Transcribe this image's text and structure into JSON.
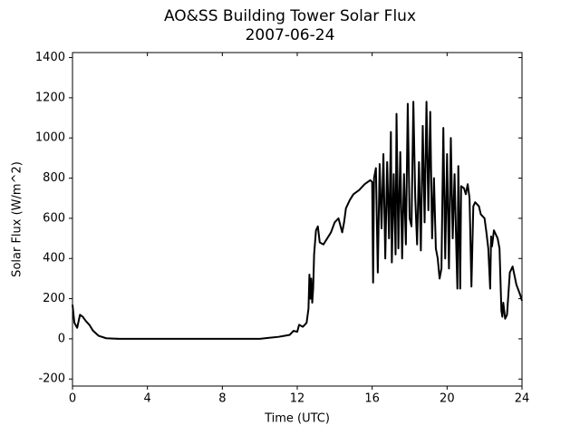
{
  "chart_data": {
    "type": "line",
    "title": "AO&SS Building Tower Solar Flux",
    "subtitle": "2007-06-24",
    "xlabel": "Time (UTC)",
    "ylabel": "Solar Flux (W/m^2)",
    "xlim": [
      0,
      24
    ],
    "xticks": [
      0,
      4,
      8,
      12,
      16,
      20,
      24
    ],
    "ylim": [
      -235,
      1425
    ],
    "yticks": [
      -200,
      0,
      200,
      400,
      600,
      800,
      1000,
      1200,
      1400
    ],
    "series": [
      {
        "name": "Solar Flux",
        "color": "#000000",
        "x": [
          0,
          0.1,
          0.25,
          0.4,
          0.55,
          0.7,
          0.9,
          1.1,
          1.4,
          1.8,
          2.5,
          4,
          8,
          10,
          10.5,
          11,
          11.3,
          11.6,
          11.8,
          12,
          12.1,
          12.3,
          12.5,
          12.6,
          12.65,
          12.7,
          12.75,
          12.8,
          12.85,
          12.9,
          13.0,
          13.1,
          13.2,
          13.4,
          13.6,
          13.8,
          14.0,
          14.2,
          14.4,
          14.5,
          14.6,
          14.8,
          15,
          15.3,
          15.6,
          15.9,
          16.0,
          16.05,
          16.1,
          16.2,
          16.3,
          16.4,
          16.5,
          16.6,
          16.7,
          16.8,
          16.9,
          17.0,
          17.05,
          17.15,
          17.25,
          17.3,
          17.4,
          17.5,
          17.6,
          17.7,
          17.8,
          17.9,
          18.0,
          18.1,
          18.2,
          18.3,
          18.4,
          18.5,
          18.6,
          18.7,
          18.8,
          18.9,
          19.0,
          19.1,
          19.2,
          19.3,
          19.4,
          19.5,
          19.6,
          19.7,
          19.8,
          19.9,
          20.0,
          20.1,
          20.2,
          20.3,
          20.4,
          20.5,
          20.55,
          20.6,
          20.7,
          20.75,
          20.9,
          21.0,
          21.1,
          21.2,
          21.3,
          21.4,
          21.5,
          21.7,
          21.8,
          22.0,
          22.1,
          22.2,
          22.3,
          22.35,
          22.4,
          22.5,
          22.6,
          22.7,
          22.8,
          22.9,
          22.95,
          23.0,
          23.1,
          23.2,
          23.35,
          23.5,
          23.7,
          23.9,
          24.0
        ],
        "values": [
          170,
          80,
          55,
          120,
          110,
          90,
          70,
          40,
          15,
          3,
          0,
          0,
          0,
          0,
          5,
          10,
          15,
          20,
          40,
          35,
          70,
          60,
          80,
          150,
          320,
          200,
          300,
          180,
          250,
          420,
          540,
          560,
          480,
          470,
          500,
          530,
          580,
          600,
          530,
          580,
          650,
          690,
          720,
          740,
          770,
          790,
          780,
          280,
          800,
          850,
          330,
          870,
          550,
          920,
          400,
          880,
          500,
          1030,
          380,
          820,
          420,
          1120,
          450,
          930,
          400,
          820,
          470,
          1170,
          600,
          560,
          1180,
          700,
          470,
          880,
          440,
          1060,
          580,
          1180,
          640,
          1130,
          500,
          800,
          450,
          400,
          300,
          350,
          1050,
          400,
          920,
          350,
          1000,
          500,
          820,
          420,
          250,
          860,
          250,
          760,
          750,
          720,
          770,
          700,
          260,
          660,
          680,
          660,
          620,
          600,
          530,
          450,
          250,
          510,
          460,
          540,
          520,
          500,
          450,
          140,
          110,
          180,
          100,
          120,
          330,
          360,
          270,
          220,
          190
        ]
      }
    ]
  }
}
